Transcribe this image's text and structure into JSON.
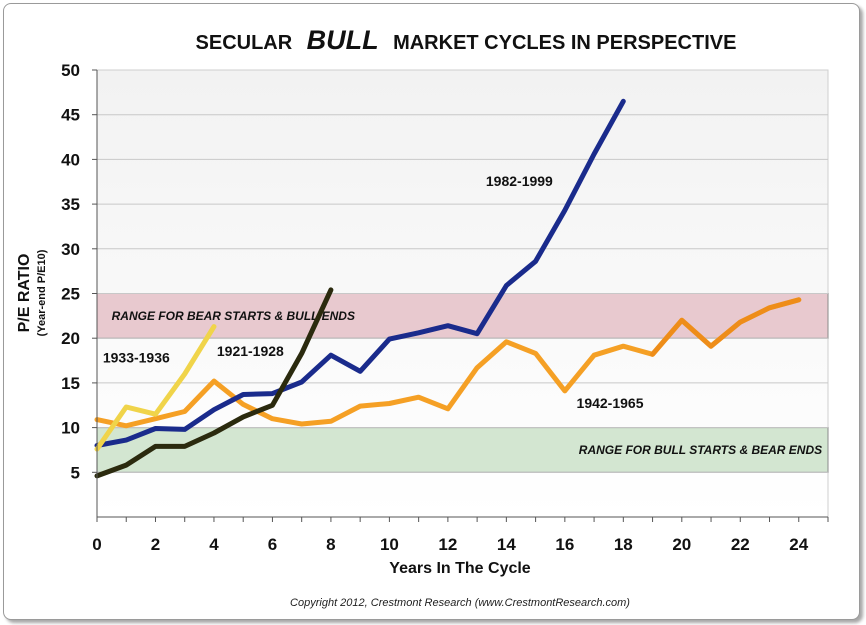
{
  "chart_data": {
    "type": "line",
    "title": {
      "pre": "SECULAR",
      "em": "BULL",
      "post": "MARKET CYCLES IN PERSPECTIVE"
    },
    "xlabel": "Years In The Cycle",
    "ylabel": "P/E RATIO",
    "ylabel_sub": "(Year-end P/E10)",
    "xlim": [
      0,
      25
    ],
    "ylim": [
      0,
      50
    ],
    "x_ticks": [
      0,
      2,
      4,
      6,
      8,
      10,
      12,
      14,
      16,
      18,
      20,
      22,
      24
    ],
    "y_ticks": [
      5,
      10,
      15,
      20,
      25,
      30,
      35,
      40,
      45,
      50
    ],
    "bands": [
      {
        "name": "bear-start-band",
        "label": "RANGE FOR BEAR STARTS & BULL ENDS",
        "y_min": 20,
        "y_max": 25,
        "color": "#e8c9cf",
        "label_x": 0.5,
        "label_y": 22.5,
        "anchor": "start"
      },
      {
        "name": "bull-start-band",
        "label": "RANGE FOR BULL STARTS & BEAR ENDS",
        "y_min": 5,
        "y_max": 10,
        "color": "#d3e6d1",
        "label_x": 24.8,
        "label_y": 7.5,
        "anchor": "end"
      }
    ],
    "series": [
      {
        "name": "1942-1965",
        "color": "#f5a025",
        "color_dark": "#e77d10",
        "x": [
          0,
          1,
          2,
          3,
          4,
          5,
          6,
          7,
          8,
          9,
          10,
          11,
          12,
          13,
          14,
          15,
          16,
          17,
          18,
          19,
          20,
          21,
          22,
          23,
          24
        ],
        "y": [
          10.9,
          10.2,
          11.0,
          11.8,
          15.2,
          12.6,
          11.0,
          10.4,
          10.7,
          12.4,
          12.7,
          13.4,
          12.1,
          16.7,
          19.6,
          18.3,
          14.1,
          18.1,
          19.1,
          18.2,
          22.0,
          19.1,
          21.8,
          23.4,
          24.3
        ],
        "label_x": 16.4,
        "label_y": 12.2
      },
      {
        "name": "1982-1999",
        "color": "#1a2b8c",
        "x": [
          0,
          1,
          2,
          3,
          4,
          5,
          6,
          7,
          8,
          9,
          10,
          11,
          12,
          13,
          14,
          15,
          16,
          17,
          18
        ],
        "y": [
          8.0,
          8.6,
          9.9,
          9.8,
          12.0,
          13.7,
          13.8,
          15.1,
          18.1,
          16.3,
          19.9,
          20.6,
          21.4,
          20.5,
          25.9,
          28.6,
          34.3,
          40.6,
          46.5
        ],
        "label_x": 13.3,
        "label_y": 37.0
      },
      {
        "name": "1921-1928",
        "color": "#2b2a0e",
        "x": [
          0,
          1,
          2,
          3,
          4,
          5,
          6,
          7,
          8
        ],
        "y": [
          4.6,
          5.8,
          7.9,
          7.9,
          9.4,
          11.2,
          12.5,
          18.3,
          25.4
        ],
        "label_x": 4.1,
        "label_y": 18.0
      },
      {
        "name": "1933-1936",
        "color": "#f0d44a",
        "x": [
          0,
          1,
          2,
          3,
          4
        ],
        "y": [
          7.6,
          12.3,
          11.5,
          16.0,
          21.3
        ],
        "label_x": 0.2,
        "label_y": 17.3
      }
    ]
  },
  "copyright": "Copyright 2012, Crestmont Research (www.CrestmontResearch.com)"
}
